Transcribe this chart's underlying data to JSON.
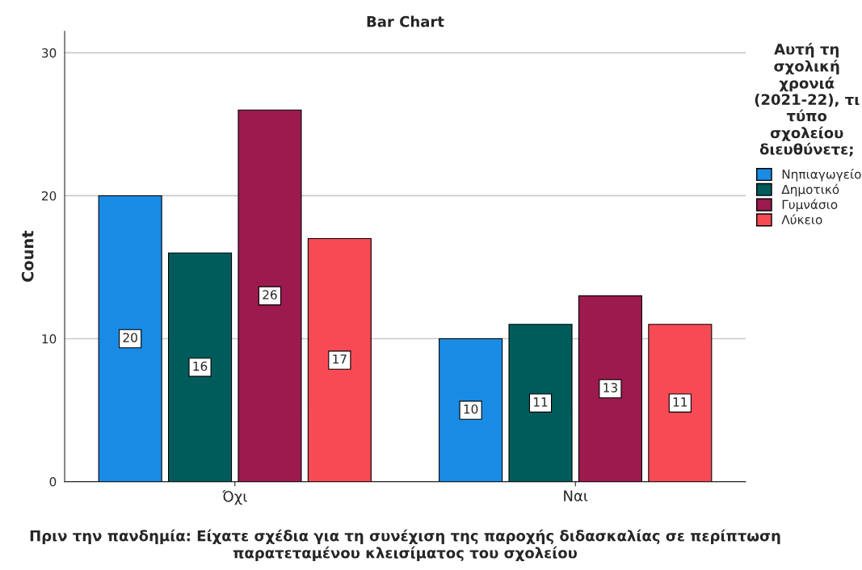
{
  "chart_data": {
    "type": "bar",
    "title": "Bar Chart",
    "xlabel": "Πριν την πανδημία: Είχατε σχέδια για τη συνέχιση της παροχής διδασκαλίας σε περίπτωση παρατεταμένου κλεισίματος του σχολείου",
    "ylabel": "Count",
    "legend_title": "Αυτή τη σχολική χρονιά (2021-22), τι τύπο σχολείου διευθύνετε;",
    "categories": [
      "Όχι",
      "Ναι"
    ],
    "series": [
      {
        "name": "Νηπιαγωγείο",
        "color": "#1a8be5",
        "values": [
          20,
          10
        ]
      },
      {
        "name": "Δημοτικό",
        "color": "#005b5b",
        "values": [
          16,
          11
        ]
      },
      {
        "name": "Γυμνάσιο",
        "color": "#9c1a4e",
        "values": [
          26,
          13
        ]
      },
      {
        "name": "Λύκειο",
        "color": "#f84a55",
        "values": [
          17,
          11
        ]
      }
    ],
    "ylim": [
      0,
      31.5
    ],
    "yticks": [
      0,
      10,
      20,
      30
    ],
    "grid": "y",
    "legend": "right",
    "data_labels": true
  }
}
